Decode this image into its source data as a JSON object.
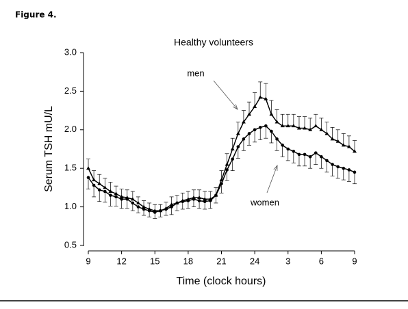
{
  "header": {
    "title": "Figure 4."
  },
  "chart_data": {
    "type": "line",
    "title": "Healthy volunteers",
    "x_label": "Time (clock hours)",
    "y_label": "Serum TSH mU/L",
    "x": [
      9,
      9.5,
      10,
      10.5,
      11,
      11.5,
      12,
      12.5,
      13,
      13.5,
      14,
      14.5,
      15,
      15.5,
      16,
      16.5,
      17,
      17.5,
      18,
      18.5,
      19,
      19.5,
      20,
      20.5,
      21,
      21.5,
      22,
      22.5,
      23,
      23.5,
      24,
      24.5,
      25,
      25.5,
      26,
      26.5,
      27,
      27.5,
      28,
      28.5,
      29,
      29.5,
      30,
      30.5,
      31,
      31.5,
      32,
      32.5,
      33
    ],
    "series": [
      {
        "name": "men",
        "color": "#000000",
        "marker": "triangle",
        "error_direction": "up",
        "values": [
          1.5,
          1.35,
          1.3,
          1.25,
          1.2,
          1.17,
          1.13,
          1.12,
          1.1,
          1.05,
          1.0,
          0.97,
          0.95,
          0.95,
          0.98,
          1.03,
          1.05,
          1.08,
          1.1,
          1.12,
          1.12,
          1.1,
          1.1,
          1.15,
          1.35,
          1.55,
          1.75,
          1.95,
          2.1,
          2.2,
          2.3,
          2.42,
          2.4,
          2.2,
          2.1,
          2.05,
          2.05,
          2.05,
          2.02,
          2.02,
          2.0,
          2.05,
          2.0,
          1.95,
          1.88,
          1.85,
          1.8,
          1.78,
          1.72
        ],
        "errors": [
          0.12,
          0.12,
          0.12,
          0.12,
          0.12,
          0.1,
          0.1,
          0.1,
          0.1,
          0.08,
          0.08,
          0.08,
          0.08,
          0.08,
          0.08,
          0.1,
          0.1,
          0.1,
          0.1,
          0.1,
          0.1,
          0.1,
          0.1,
          0.1,
          0.12,
          0.14,
          0.14,
          0.15,
          0.15,
          0.16,
          0.18,
          0.2,
          0.2,
          0.18,
          0.16,
          0.15,
          0.15,
          0.15,
          0.15,
          0.15,
          0.15,
          0.15,
          0.15,
          0.15,
          0.15,
          0.15,
          0.15,
          0.14,
          0.14
        ]
      },
      {
        "name": "women",
        "color": "#000000",
        "marker": "circle",
        "error_direction": "down",
        "values": [
          1.38,
          1.28,
          1.22,
          1.2,
          1.15,
          1.13,
          1.1,
          1.1,
          1.05,
          1.0,
          0.97,
          0.95,
          0.93,
          0.95,
          0.97,
          1.0,
          1.05,
          1.07,
          1.08,
          1.1,
          1.08,
          1.07,
          1.08,
          1.15,
          1.3,
          1.48,
          1.62,
          1.78,
          1.88,
          1.95,
          2.0,
          2.03,
          2.05,
          1.98,
          1.88,
          1.8,
          1.75,
          1.72,
          1.68,
          1.68,
          1.65,
          1.7,
          1.65,
          1.6,
          1.55,
          1.52,
          1.5,
          1.48,
          1.45
        ],
        "errors": [
          0.15,
          0.15,
          0.15,
          0.14,
          0.14,
          0.12,
          0.12,
          0.12,
          0.1,
          0.08,
          0.08,
          0.08,
          0.08,
          0.08,
          0.08,
          0.1,
          0.1,
          0.1,
          0.1,
          0.1,
          0.1,
          0.1,
          0.1,
          0.1,
          0.12,
          0.14,
          0.15,
          0.15,
          0.15,
          0.15,
          0.16,
          0.16,
          0.16,
          0.15,
          0.15,
          0.15,
          0.15,
          0.15,
          0.15,
          0.15,
          0.15,
          0.15,
          0.15,
          0.15,
          0.15,
          0.15,
          0.15,
          0.15,
          0.15
        ]
      }
    ],
    "xlim": [
      9,
      33
    ],
    "xticks": [
      9,
      12,
      15,
      18,
      21,
      24,
      {
        "value": 27,
        "label": "3"
      },
      {
        "value": 30,
        "label": "6"
      },
      {
        "value": 33,
        "label": "9"
      }
    ],
    "ylim": [
      0.5,
      3.0
    ],
    "yticks": [
      {
        "value": 0.5,
        "label": "0.5"
      },
      {
        "value": 1.0,
        "label": "1.0"
      },
      {
        "value": 1.5,
        "label": "1.5"
      },
      {
        "value": 2.0,
        "label": "2.0"
      },
      {
        "value": 2.5,
        "label": "2.5"
      },
      {
        "value": 3.0,
        "label": "3.0"
      }
    ],
    "grid": false
  }
}
